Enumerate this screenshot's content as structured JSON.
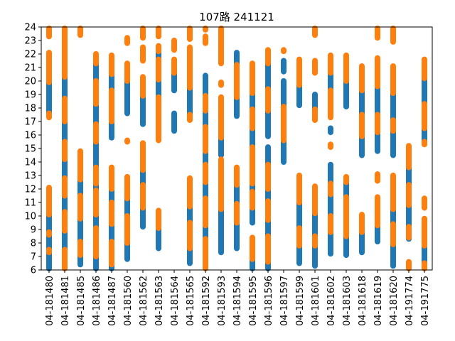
{
  "chart_data": {
    "type": "scatter",
    "title": "107路  241121",
    "xlabel": "",
    "ylabel": "",
    "ylim": [
      6,
      24
    ],
    "yticks": [
      6,
      7,
      8,
      9,
      10,
      11,
      12,
      13,
      14,
      15,
      16,
      17,
      18,
      19,
      20,
      21,
      22,
      23,
      24
    ],
    "grid": false,
    "legend": "none",
    "categories": [
      "04-181480",
      "04-181481",
      "04-181485",
      "04-181486",
      "04-181487",
      "04-181560",
      "04-181562",
      "04-181563",
      "04-181564",
      "04-181565",
      "04-181592",
      "04-181593",
      "04-181594",
      "04-181595",
      "04-181596",
      "04-181597",
      "04-181599",
      "04-181601",
      "04-181602",
      "04-181603",
      "04-181618",
      "04-181619",
      "04-181620",
      "04-191774",
      "04-191775"
    ],
    "series": [
      {
        "color": "#1f77b4",
        "segments": [
          [
            0,
            6.0,
            7.3
          ],
          [
            0,
            7.5,
            8.6
          ],
          [
            0,
            8.8,
            10.1
          ],
          [
            0,
            17.6,
            19.9
          ],
          [
            1,
            7.5,
            8.9
          ],
          [
            1,
            10.3,
            11.5
          ],
          [
            1,
            12.8,
            14.2
          ],
          [
            1,
            15.5,
            17.0
          ],
          [
            1,
            18.7,
            20.3
          ],
          [
            2,
            6.4,
            7.1
          ],
          [
            2,
            8.1,
            9.8
          ],
          [
            2,
            11.5,
            12.7
          ],
          [
            3,
            6.0,
            7.0
          ],
          [
            3,
            9.1,
            10.1
          ],
          [
            3,
            11.9,
            12.4
          ],
          [
            3,
            13.6,
            15.5
          ],
          [
            3,
            16.8,
            18.3
          ],
          [
            3,
            20.0,
            21.3
          ],
          [
            4,
            6.0,
            6.4
          ],
          [
            4,
            8.1,
            9.4
          ],
          [
            4,
            11.0,
            12.0
          ],
          [
            4,
            15.8,
            17.0
          ],
          [
            4,
            19.3,
            20.5
          ],
          [
            5,
            6.8,
            8.0
          ],
          [
            5,
            10.0,
            11.3
          ],
          [
            5,
            17.6,
            20.0
          ],
          [
            6,
            9.2,
            10.6
          ],
          [
            6,
            12.3,
            13.4
          ],
          [
            6,
            16.8,
            18.9
          ],
          [
            7,
            7.6,
            9.1
          ],
          [
            7,
            18.8,
            20.1
          ],
          [
            7,
            21.6,
            22.2
          ],
          [
            8,
            16.3,
            17.6
          ],
          [
            8,
            19.3,
            20.6
          ],
          [
            9,
            6.5,
            7.6
          ],
          [
            9,
            9.5,
            10.7
          ],
          [
            9,
            17.5,
            19.5
          ],
          [
            10,
            8.3,
            9.3
          ],
          [
            10,
            11.3,
            12.5
          ],
          [
            10,
            13.8,
            14.8
          ],
          [
            10,
            16.6,
            17.8
          ],
          [
            10,
            18.9,
            20.4
          ],
          [
            11,
            7.3,
            10.5
          ],
          [
            11,
            14.5,
            15.8
          ],
          [
            12,
            7.6,
            9.5
          ],
          [
            12,
            10.9,
            12.3
          ],
          [
            12,
            17.4,
            18.8
          ],
          [
            12,
            21.2,
            22.1
          ],
          [
            13,
            6.0,
            6.8
          ],
          [
            13,
            9.5,
            10.6
          ],
          [
            13,
            11.8,
            12.4
          ],
          [
            13,
            15.1,
            16.5
          ],
          [
            13,
            17.9,
            19.1
          ],
          [
            14,
            6.0,
            6.6
          ],
          [
            14,
            8.5,
            9.7
          ],
          [
            14,
            11.1,
            12.0
          ],
          [
            14,
            13.8,
            15.1
          ],
          [
            14,
            15.9,
            17.8
          ],
          [
            14,
            19.4,
            21.3
          ],
          [
            15,
            14.0,
            15.6
          ],
          [
            15,
            18.1,
            20.0
          ],
          [
            15,
            20.7,
            21.5
          ],
          [
            16,
            6.5,
            7.8
          ],
          [
            16,
            9.1,
            11.0
          ],
          [
            16,
            18.2,
            19.7
          ],
          [
            17,
            6.3,
            7.8
          ],
          [
            17,
            8.5,
            10.2
          ],
          [
            17,
            17.9,
            19.0
          ],
          [
            18,
            7.2,
            8.8
          ],
          [
            18,
            10.0,
            11.6
          ],
          [
            18,
            12.4,
            13.8
          ],
          [
            18,
            16.2,
            16.5
          ],
          [
            18,
            19.3,
            20.6
          ],
          [
            19,
            7.1,
            8.5
          ],
          [
            19,
            11.4,
            12.5
          ],
          [
            19,
            18.1,
            20.0
          ],
          [
            20,
            7.3,
            8.8
          ],
          [
            20,
            14.5,
            15.9
          ],
          [
            20,
            17.5,
            19.3
          ],
          [
            21,
            8.1,
            9.3
          ],
          [
            21,
            14.8,
            16.2
          ],
          [
            21,
            17.5,
            19.6
          ],
          [
            22,
            6.3,
            7.9
          ],
          [
            22,
            9.4,
            10.5
          ],
          [
            22,
            14.5,
            16.3
          ],
          [
            22,
            17.1,
            19.1
          ],
          [
            23,
            8.3,
            8.4
          ],
          [
            23,
            9.2,
            10.8
          ],
          [
            23,
            12.3,
            13.6
          ],
          [
            24,
            6.5,
            7.8
          ],
          [
            24,
            15.5,
            16.5
          ],
          [
            24,
            18.3,
            20.2
          ]
        ]
      },
      {
        "color": "#ff7f0e",
        "segments": [
          [
            0,
            7.3,
            7.5
          ],
          [
            0,
            8.6,
            8.8
          ],
          [
            0,
            10.1,
            12.1
          ],
          [
            0,
            17.3,
            17.6
          ],
          [
            0,
            19.9,
            22.1
          ],
          [
            0,
            23.3,
            24.0
          ],
          [
            1,
            6.0,
            7.5
          ],
          [
            1,
            8.9,
            10.3
          ],
          [
            1,
            11.5,
            12.8
          ],
          [
            1,
            14.2,
            15.5
          ],
          [
            1,
            17.0,
            18.7
          ],
          [
            1,
            20.3,
            24.0
          ],
          [
            2,
            7.1,
            8.1
          ],
          [
            2,
            9.8,
            11.5
          ],
          [
            2,
            12.7,
            14.8
          ],
          [
            2,
            23.4,
            24.0
          ],
          [
            3,
            7.0,
            9.1
          ],
          [
            3,
            10.1,
            11.9
          ],
          [
            3,
            12.4,
            13.6
          ],
          [
            3,
            15.5,
            16.8
          ],
          [
            3,
            18.3,
            20.0
          ],
          [
            3,
            21.3,
            22.0
          ],
          [
            4,
            6.4,
            8.1
          ],
          [
            4,
            9.4,
            11.0
          ],
          [
            4,
            12.0,
            13.6
          ],
          [
            4,
            17.0,
            19.3
          ],
          [
            4,
            20.5,
            21.9
          ],
          [
            5,
            8.0,
            10.0
          ],
          [
            5,
            11.3,
            12.9
          ],
          [
            5,
            15.5,
            15.6
          ],
          [
            5,
            20.0,
            21.3
          ],
          [
            5,
            22.8,
            23.2
          ],
          [
            6,
            10.6,
            12.3
          ],
          [
            6,
            13.4,
            15.4
          ],
          [
            6,
            18.9,
            20.3
          ],
          [
            6,
            21.5,
            22.5
          ],
          [
            6,
            23.2,
            24.0
          ],
          [
            7,
            9.1,
            10.4
          ],
          [
            7,
            15.6,
            18.8
          ],
          [
            7,
            20.1,
            21.6
          ],
          [
            7,
            22.2,
            22.6
          ],
          [
            7,
            23.3,
            24.0
          ],
          [
            8,
            20.6,
            21.6
          ],
          [
            8,
            22.3,
            23.0
          ],
          [
            9,
            7.6,
            9.5
          ],
          [
            9,
            10.7,
            12.8
          ],
          [
            9,
            17.1,
            17.5
          ],
          [
            9,
            19.5,
            22.5
          ],
          [
            9,
            23.1,
            24.0
          ],
          [
            10,
            6.0,
            8.3
          ],
          [
            10,
            9.3,
            11.3
          ],
          [
            10,
            12.5,
            13.8
          ],
          [
            10,
            14.8,
            16.6
          ],
          [
            10,
            17.8,
            18.9
          ],
          [
            10,
            22.8,
            23.3
          ],
          [
            10,
            23.8,
            24.0
          ],
          [
            11,
            10.5,
            14.2
          ],
          [
            11,
            15.8,
            18.8
          ],
          [
            11,
            19.7,
            19.9
          ],
          [
            11,
            21.3,
            24.0
          ],
          [
            12,
            9.5,
            10.9
          ],
          [
            12,
            12.3,
            13.6
          ],
          [
            12,
            18.8,
            21.2
          ],
          [
            13,
            6.8,
            8.4
          ],
          [
            13,
            10.6,
            11.8
          ],
          [
            13,
            12.4,
            15.1
          ],
          [
            13,
            16.5,
            17.9
          ],
          [
            13,
            19.1,
            21.3
          ],
          [
            14,
            6.6,
            8.5
          ],
          [
            14,
            9.7,
            11.1
          ],
          [
            14,
            12.0,
            13.8
          ],
          [
            14,
            17.8,
            19.4
          ],
          [
            14,
            21.3,
            22.3
          ],
          [
            15,
            15.6,
            18.1
          ],
          [
            15,
            22.2,
            22.3
          ],
          [
            16,
            7.8,
            9.1
          ],
          [
            16,
            11.0,
            13.0
          ],
          [
            16,
            19.7,
            21.6
          ],
          [
            17,
            7.8,
            8.5
          ],
          [
            17,
            10.2,
            12.2
          ],
          [
            17,
            17.1,
            17.9
          ],
          [
            17,
            20.6,
            21.5
          ],
          [
            17,
            23.4,
            24.0
          ],
          [
            18,
            8.8,
            10.0
          ],
          [
            18,
            11.6,
            12.4
          ],
          [
            18,
            15.1,
            15.3
          ],
          [
            18,
            17.3,
            19.3
          ],
          [
            18,
            20.6,
            21.9
          ],
          [
            19,
            8.5,
            11.4
          ],
          [
            19,
            12.5,
            12.9
          ],
          [
            19,
            20.0,
            21.9
          ],
          [
            20,
            8.8,
            10.1
          ],
          [
            20,
            15.9,
            17.5
          ],
          [
            20,
            19.3,
            21.1
          ],
          [
            21,
            9.3,
            11.4
          ],
          [
            21,
            12.6,
            13.1
          ],
          [
            21,
            16.2,
            17.5
          ],
          [
            21,
            19.6,
            21.7
          ],
          [
            21,
            23.2,
            24.0
          ],
          [
            22,
            7.9,
            9.4
          ],
          [
            22,
            10.5,
            13.0
          ],
          [
            22,
            16.3,
            17.1
          ],
          [
            22,
            19.1,
            21.1
          ],
          [
            22,
            22.9,
            24.0
          ],
          [
            23,
            6.0,
            6.6
          ],
          [
            23,
            8.4,
            9.2
          ],
          [
            23,
            10.8,
            12.3
          ],
          [
            23,
            13.6,
            15.2
          ],
          [
            24,
            6.0,
            6.5
          ],
          [
            24,
            7.8,
            9.8
          ],
          [
            24,
            10.6,
            11.3
          ],
          [
            24,
            15.3,
            15.5
          ],
          [
            24,
            16.5,
            18.3
          ],
          [
            24,
            20.2,
            21.6
          ]
        ]
      }
    ]
  }
}
